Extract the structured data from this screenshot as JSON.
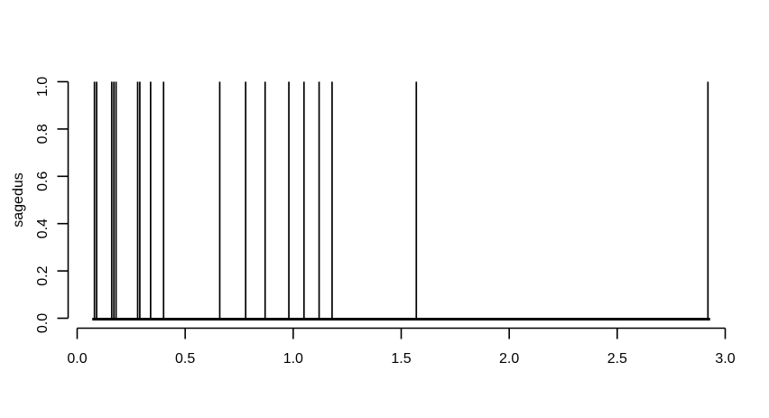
{
  "figure": {
    "background": "#ffffff",
    "foreground": "#000000"
  },
  "chart_data": {
    "type": "bar",
    "style": "r-base-type-h-spike-plot",
    "title": "",
    "xlabel": "",
    "ylabel": "sagedus",
    "xlim": [
      0.0,
      3.0
    ],
    "ylim": [
      0.0,
      1.0
    ],
    "grid": false,
    "legend": false,
    "spike_x": [
      0.08,
      0.09,
      0.16,
      0.17,
      0.18,
      0.28,
      0.29,
      0.34,
      0.4,
      0.66,
      0.78,
      0.87,
      0.98,
      1.05,
      1.12,
      1.18,
      1.57,
      2.92
    ],
    "spike_height": 1.0,
    "baseline": {
      "y": 0.0,
      "x_start": 0.07,
      "x_end": 2.93
    },
    "x_ticks": {
      "values": [
        0.0,
        0.5,
        1.0,
        1.5,
        2.0,
        2.5,
        3.0
      ],
      "labels": [
        "0.0",
        "0.5",
        "1.0",
        "1.5",
        "2.0",
        "2.5",
        "3.0"
      ]
    },
    "y_ticks": {
      "values": [
        0.0,
        0.2,
        0.4,
        0.6,
        0.8,
        1.0
      ],
      "labels": [
        "0.0",
        "0.2",
        "0.4",
        "0.6",
        "0.8",
        "1.0"
      ]
    }
  }
}
